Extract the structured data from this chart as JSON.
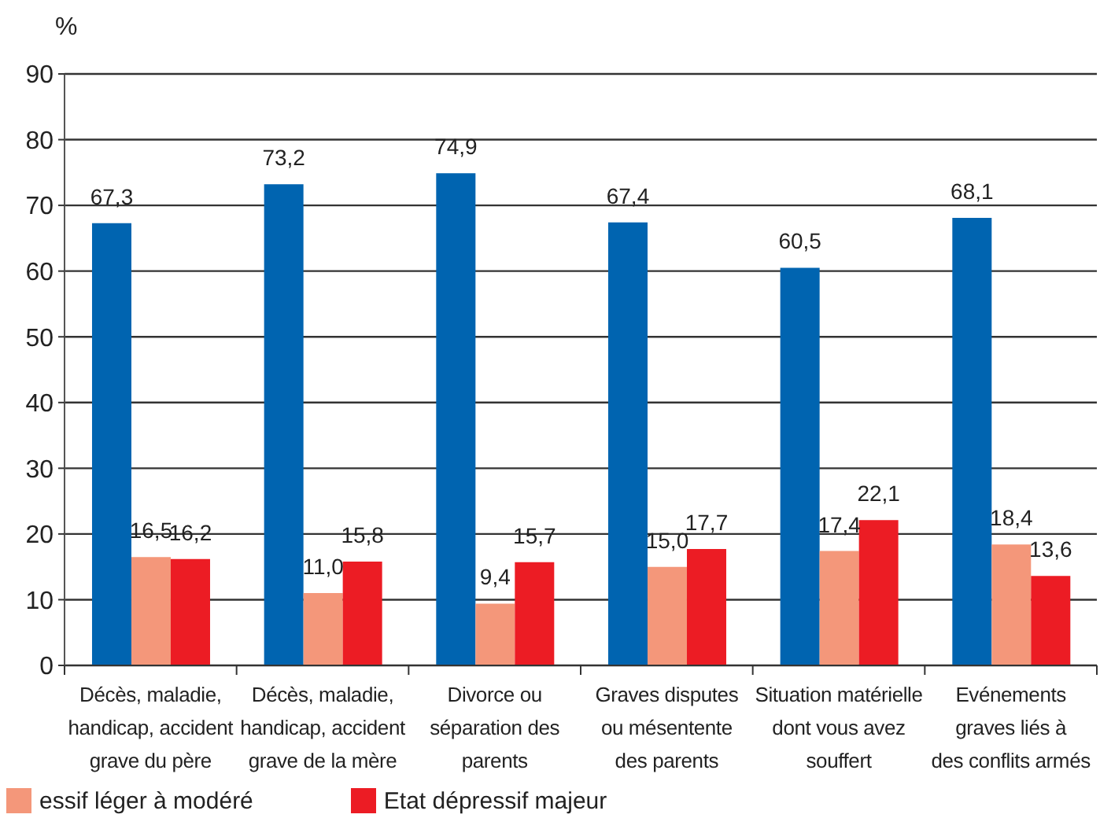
{
  "chart_data": {
    "type": "bar",
    "ylabel": "%",
    "categories": [
      "Décès, maladie,\nhandicap, accident\ngrave du père",
      "Décès, maladie,\nhandicap, accident\ngrave de la mère",
      "Divorce ou\nséparation des\nparents",
      "Graves disputes\nou mésentente\ndes parents",
      "Situation matérielle\ndont vous avez\nsouffert",
      "Evénements\ngraves liés à\ndes conflits armés"
    ],
    "series": [
      {
        "color": "#0064b0",
        "values": [
          67.3,
          73.2,
          74.9,
          67.4,
          60.5,
          68.1
        ],
        "value_labels": [
          "67,3",
          "73,2",
          "74,9",
          "67,4",
          "60,5",
          "68,1"
        ]
      },
      {
        "name": "essif léger à modéré",
        "color": "#f4977a",
        "values": [
          16.5,
          11.0,
          9.4,
          15.0,
          17.4,
          18.4
        ],
        "value_labels": [
          "16,5",
          "11,0",
          "9,4",
          "15,0",
          "17,4",
          "18,4"
        ]
      },
      {
        "name": "Etat dépressif majeur",
        "color": "#ec1c24",
        "values": [
          16.2,
          15.8,
          15.7,
          17.7,
          22.1,
          13.6
        ],
        "value_labels": [
          "16,2",
          "15,8",
          "15,7",
          "17,7",
          "22,1",
          "13,6"
        ]
      }
    ],
    "ylim": [
      0,
      90
    ],
    "yticks": [
      0,
      10,
      20,
      30,
      40,
      50,
      60,
      70,
      80,
      90
    ],
    "grid": "y",
    "legend": "bottom"
  }
}
